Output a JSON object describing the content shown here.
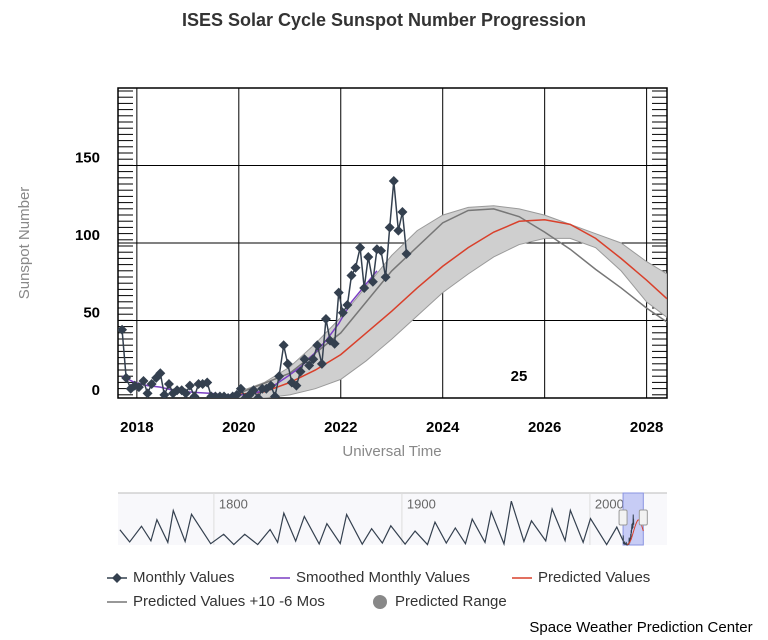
{
  "chart_data": {
    "type": "line",
    "title": "ISES Solar Cycle Sunspot Number Progression",
    "x_label": "Universal Time",
    "y_label": "Sunspot Number",
    "xlim": [
      2017.63,
      2028.4
    ],
    "xticks": [
      2018,
      2020,
      2022,
      2024,
      2026,
      2028
    ],
    "ylim": [
      0,
      200
    ],
    "yticks": [
      0,
      50,
      100,
      150
    ],
    "grid": true,
    "series": [
      {
        "name": "Monthly Values",
        "color": "#34404f",
        "marker": "diamond",
        "x": [
          2017.71,
          2017.79,
          2017.88,
          2017.96,
          2018.04,
          2018.13,
          2018.21,
          2018.29,
          2018.38,
          2018.46,
          2018.54,
          2018.63,
          2018.71,
          2018.79,
          2018.88,
          2018.96,
          2019.04,
          2019.13,
          2019.21,
          2019.29,
          2019.38,
          2019.46,
          2019.54,
          2019.63,
          2019.71,
          2019.79,
          2019.88,
          2019.96,
          2020.04,
          2020.13,
          2020.21,
          2020.29,
          2020.38,
          2020.46,
          2020.54,
          2020.63,
          2020.71,
          2020.79,
          2020.88,
          2020.96,
          2021.04,
          2021.13,
          2021.21,
          2021.29,
          2021.38,
          2021.46,
          2021.54,
          2021.63,
          2021.71,
          2021.79,
          2021.88,
          2021.96,
          2022.04,
          2022.13,
          2022.21,
          2022.29,
          2022.38,
          2022.46,
          2022.54,
          2022.63,
          2022.71,
          2022.79,
          2022.88,
          2022.96,
          2023.04,
          2023.13,
          2023.21,
          2023.29
        ],
        "values": [
          44,
          13,
          6,
          8,
          7,
          11,
          3,
          9,
          13,
          16,
          2,
          9,
          3,
          5,
          5,
          3,
          8,
          1,
          9,
          9,
          10,
          1,
          1,
          1,
          1,
          0,
          1,
          2,
          6,
          0,
          2,
          5,
          0,
          6,
          6,
          8,
          1,
          14,
          34,
          22,
          10,
          8,
          17,
          25,
          21,
          25,
          34,
          22,
          51,
          37,
          35,
          68,
          55,
          60,
          79,
          84,
          97,
          71,
          91,
          75,
          96,
          95,
          78,
          110,
          140,
          108,
          120,
          93
        ]
      },
      {
        "name": "Smoothed Monthly Values",
        "color": "#7b3fc4",
        "x": [
          2017.71,
          2017.96,
          2018.21,
          2018.46,
          2018.71,
          2018.96,
          2019.21,
          2019.46,
          2019.71,
          2019.96,
          2020.21,
          2020.46,
          2020.71,
          2020.96,
          2021.21,
          2021.46,
          2021.71,
          2021.96,
          2022.21,
          2022.46,
          2022.71
        ],
        "values": [
          14,
          10,
          8,
          7,
          5,
          4,
          3.5,
          3,
          2,
          1.8,
          2.5,
          4.5,
          8.5,
          14,
          20,
          28,
          37,
          48,
          62,
          72,
          82
        ]
      },
      {
        "name": "Predicted Values",
        "color": "#d9402b",
        "x": [
          2019.9,
          2020.5,
          2021,
          2021.5,
          2022,
          2022.5,
          2023,
          2023.5,
          2024,
          2024.5,
          2025,
          2025.5,
          2026,
          2026.5,
          2027,
          2027.5,
          2028,
          2028.4
        ],
        "values": [
          2,
          4,
          10,
          18,
          28,
          42,
          56,
          71,
          85,
          97,
          107,
          114,
          115,
          112,
          103,
          90,
          76,
          64
        ]
      },
      {
        "name": "Predicted Values +10 -6 Mos",
        "color": "#777777",
        "x": [
          2020,
          2021,
          2022,
          2023,
          2024,
          2024.5,
          2025,
          2025.5,
          2026,
          2026.5,
          2027,
          2027.5,
          2028,
          2028.4
        ],
        "values": [
          3,
          16,
          42,
          82,
          113,
          121,
          122,
          117,
          107,
          96,
          83,
          71,
          58,
          49
        ]
      }
    ],
    "range": {
      "name": "Predicted Range",
      "color": "#888888",
      "x": [
        2020,
        2020.5,
        2021,
        2021.5,
        2022,
        2022.5,
        2023,
        2023.5,
        2024,
        2024.5,
        2025,
        2025.5,
        2026,
        2026.5,
        2027,
        2027.5,
        2028,
        2028.4
      ],
      "high": [
        4,
        10,
        20,
        35,
        52,
        72,
        92,
        108,
        118,
        123,
        124,
        122,
        118,
        112,
        106,
        100,
        88,
        80
      ],
      "low": [
        0,
        0,
        2,
        6,
        12,
        24,
        38,
        53,
        68,
        80,
        91,
        99,
        103,
        103,
        97,
        82,
        62,
        52
      ]
    },
    "annotations": [
      {
        "text": "25"
      }
    ],
    "navigator": {
      "color": "#34404f",
      "xlim": [
        1749,
        2041
      ],
      "ylim": [
        0,
        220
      ],
      "xticks": [
        1800,
        1900,
        2000
      ],
      "x": [
        1750,
        1755.2,
        1761.5,
        1766.5,
        1769.7,
        1775.5,
        1778.4,
        1784.7,
        1788.1,
        1798.3,
        1805.2,
        1810.6,
        1816.4,
        1823.3,
        1829.9,
        1833.9,
        1837.2,
        1843.5,
        1848.1,
        1856,
        1860.1,
        1867.2,
        1870.6,
        1878.9,
        1883.9,
        1889.6,
        1894.1,
        1901.7,
        1907,
        1913.6,
        1917.6,
        1923.6,
        1928.4,
        1933.8,
        1937.4,
        1944.2,
        1947.5,
        1954.3,
        1958.2,
        1964.9,
        1968.9,
        1976.5,
        1979.9,
        1986.8,
        1989.6,
        1996.4,
        2000.3,
        2008.9,
        2014.3,
        2017.6
      ],
      "values": [
        70,
        14,
        86,
        19,
        116,
        12,
        158,
        16,
        141,
        6,
        49,
        2,
        49,
        2,
        71,
        12,
        146,
        18,
        131,
        5,
        98,
        7,
        140,
        4,
        75,
        9,
        88,
        4,
        64,
        2,
        105,
        9,
        78,
        6,
        119,
        12,
        152,
        5,
        201,
        16,
        111,
        19,
        165,
        20,
        159,
        12,
        121,
        2,
        82,
        20
      ]
    },
    "credit": "Space Weather Prediction Center"
  }
}
